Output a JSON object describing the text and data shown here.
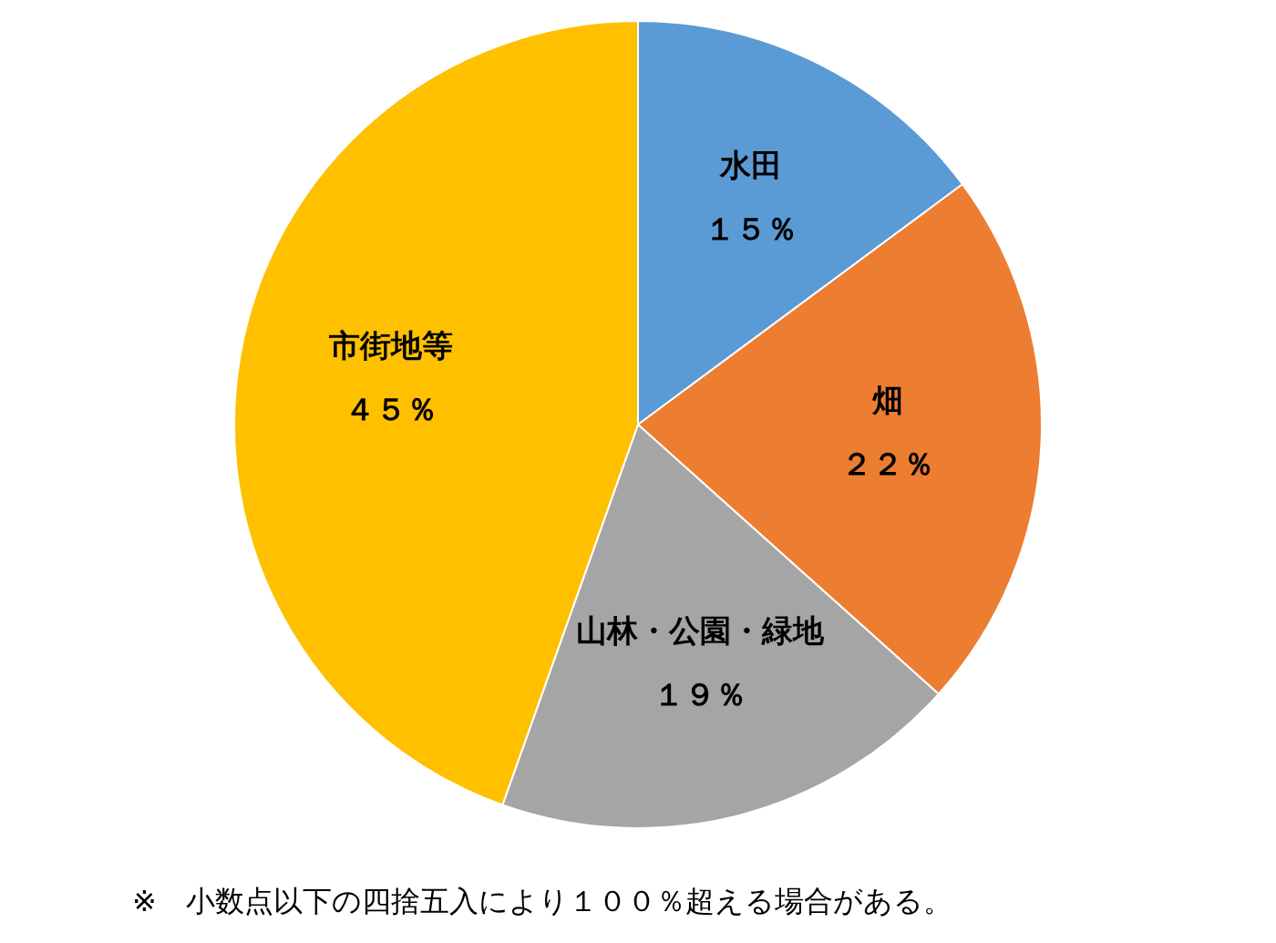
{
  "chart_data": {
    "type": "pie",
    "categories": [
      "水田",
      "畑",
      "山林・公園・緑地",
      "市街地等"
    ],
    "values": [
      15,
      22,
      19,
      45
    ],
    "colors": [
      "#5b9bd5",
      "#ed7d31",
      "#a5a5a5",
      "#ffc000"
    ],
    "value_labels": [
      "１５％",
      "２２％",
      "１９％",
      "４５％"
    ],
    "annotations": [
      "※　小数点以下の四捨五入により１００％超える場合がある。"
    ]
  }
}
